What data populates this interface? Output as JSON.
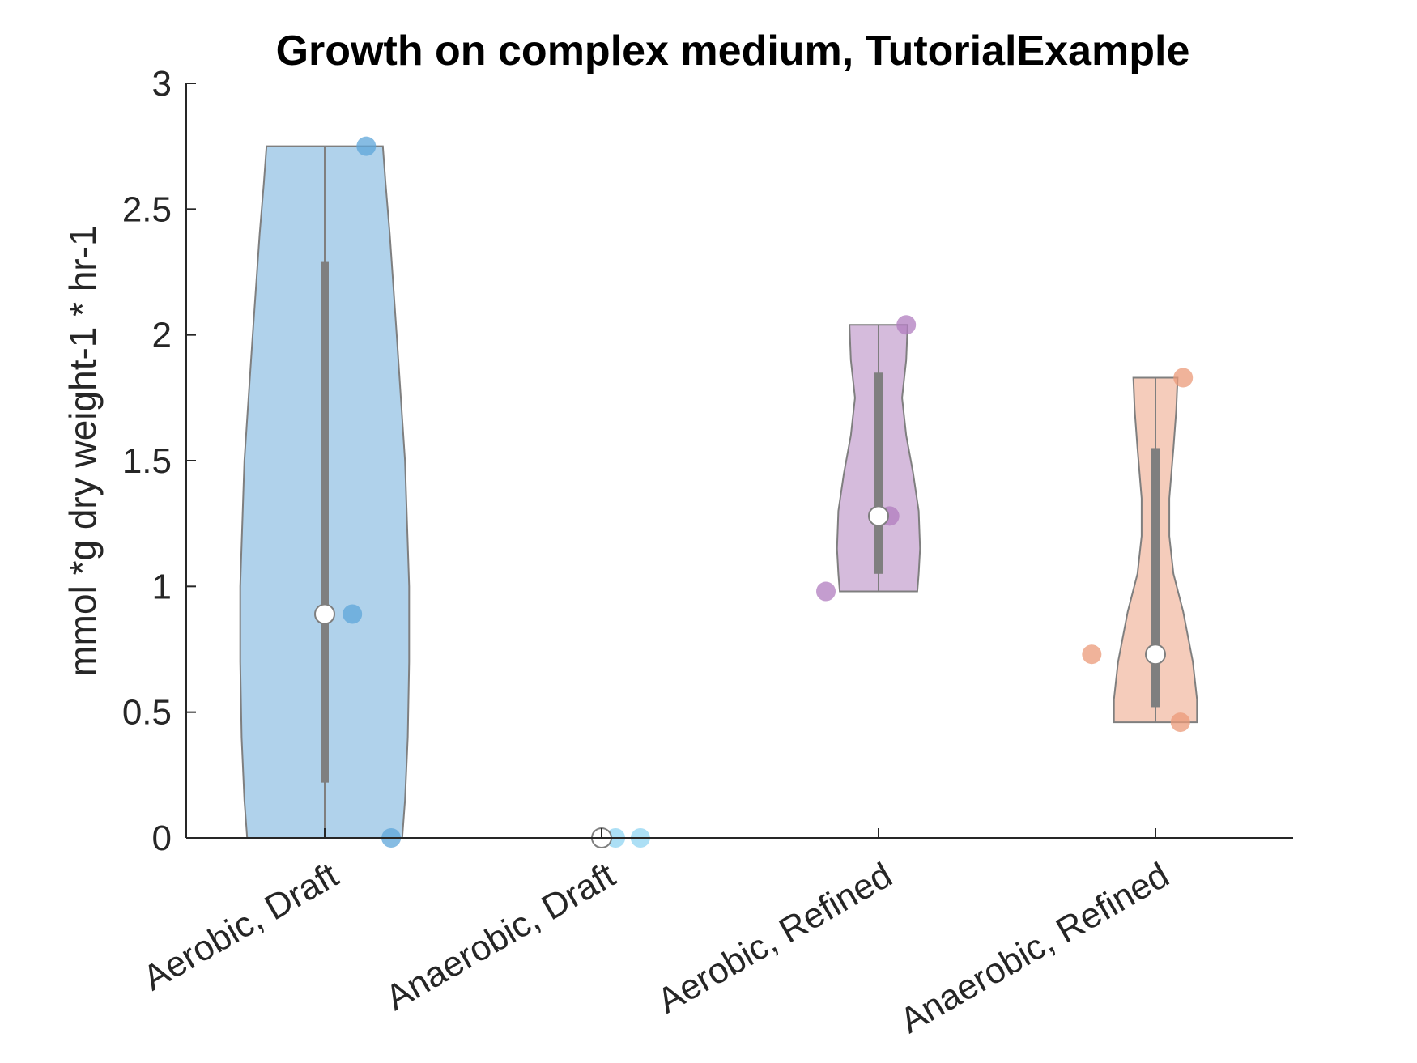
{
  "chart_data": {
    "type": "violin",
    "title": "Growth on complex medium, TutorialExample",
    "xlabel": "",
    "ylabel": "mmol *g dry weight-1 * hr-1",
    "ylim": [
      0,
      3
    ],
    "yticks": [
      "0",
      "0.5",
      "1",
      "1.5",
      "2",
      "2.5",
      "3"
    ],
    "categories": [
      "Aerobic, Draft",
      "Anaerobic, Draft",
      "Aerobic, Refined",
      "Anaerobic, Refined"
    ],
    "colors": [
      "#7bb4dd",
      "#9ed9f4",
      "#b98dc4",
      "#eeaa8d"
    ],
    "point_colors": [
      "#5da5d9",
      "#90d4f2",
      "#b07cbf",
      "#eb9a78"
    ],
    "series": [
      {
        "points": [
          2.75,
          0.89,
          0.0
        ],
        "median": 0.89,
        "q1": 0.22,
        "q3": 2.29,
        "min": 0.0,
        "max": 2.75,
        "width_profile": [
          [
            0.0,
            0.56
          ],
          [
            0.15,
            0.58
          ],
          [
            0.4,
            0.6
          ],
          [
            0.7,
            0.61
          ],
          [
            1.0,
            0.61
          ],
          [
            1.5,
            0.58
          ],
          [
            2.0,
            0.52
          ],
          [
            2.4,
            0.47
          ],
          [
            2.6,
            0.44
          ],
          [
            2.75,
            0.42
          ]
        ]
      },
      {
        "points": [
          0.0,
          0.0,
          0.0
        ],
        "median": 0.0,
        "q1": 0.0,
        "q3": 0.0,
        "min": 0.0,
        "max": 0.0,
        "width_profile": [
          [
            0.0,
            0.6
          ],
          [
            0.0,
            0.6
          ]
        ]
      },
      {
        "points": [
          2.04,
          1.28,
          0.98
        ],
        "median": 1.28,
        "q1": 1.05,
        "q3": 1.85,
        "min": 0.98,
        "max": 2.04,
        "width_profile": [
          [
            0.98,
            0.28
          ],
          [
            1.05,
            0.29
          ],
          [
            1.15,
            0.3
          ],
          [
            1.3,
            0.29
          ],
          [
            1.45,
            0.25
          ],
          [
            1.6,
            0.2
          ],
          [
            1.75,
            0.17
          ],
          [
            1.9,
            0.2
          ],
          [
            2.04,
            0.21
          ]
        ]
      },
      {
        "points": [
          1.83,
          0.73,
          0.46
        ],
        "median": 0.73,
        "q1": 0.52,
        "q3": 1.55,
        "min": 0.46,
        "max": 1.83,
        "width_profile": [
          [
            0.46,
            0.3
          ],
          [
            0.55,
            0.3
          ],
          [
            0.7,
            0.27
          ],
          [
            0.9,
            0.2
          ],
          [
            1.05,
            0.13
          ],
          [
            1.2,
            0.1
          ],
          [
            1.35,
            0.1
          ],
          [
            1.55,
            0.13
          ],
          [
            1.7,
            0.15
          ],
          [
            1.83,
            0.16
          ]
        ]
      }
    ],
    "grid": false,
    "legend": "none"
  }
}
